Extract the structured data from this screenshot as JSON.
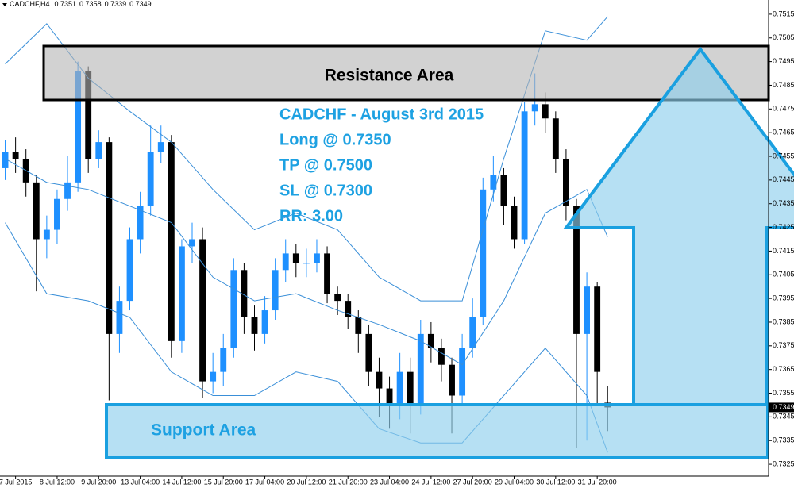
{
  "chart_data": {
    "type": "candlestick",
    "symbol": "CADCHF,H4",
    "open": [
      0.745,
      0.7457,
      0.7454,
      0.7444,
      0.742,
      0.7424,
      0.7437,
      0.7444,
      0.7491,
      0.7454,
      0.7461,
      0.738,
      0.7394,
      0.742,
      0.7434,
      0.7457,
      0.7461,
      0.7377,
      0.7417,
      0.742,
      0.736,
      0.7364,
      0.7374,
      0.7407,
      0.7387,
      0.738,
      0.739,
      0.7407,
      0.7414,
      0.741,
      0.741,
      0.7414,
      0.7397,
      0.7394,
      0.7387,
      0.738,
      0.7364,
      0.7357,
      0.735,
      0.7364,
      0.735,
      0.738,
      0.7374,
      0.7367,
      0.7354,
      0.7374,
      0.7387,
      0.7441,
      0.7447,
      0.7434,
      0.742,
      0.7474,
      0.7477,
      0.7471,
      0.7454,
      0.7434,
      0.738,
      0.74,
      0.7351
    ],
    "high": [
      0.7462,
      0.7463,
      0.7458,
      0.7447,
      0.743,
      0.7441,
      0.7455,
      0.7495,
      0.7493,
      0.7466,
      0.7463,
      0.74,
      0.7425,
      0.744,
      0.7468,
      0.7468,
      0.7464,
      0.742,
      0.7427,
      0.7425,
      0.7372,
      0.738,
      0.7412,
      0.741,
      0.7392,
      0.7396,
      0.7412,
      0.742,
      0.7418,
      0.7416,
      0.742,
      0.7417,
      0.74,
      0.7397,
      0.739,
      0.7384,
      0.737,
      0.7362,
      0.7372,
      0.737,
      0.7386,
      0.7385,
      0.7378,
      0.737,
      0.738,
      0.7395,
      0.7446,
      0.7455,
      0.745,
      0.7438,
      0.7478,
      0.749,
      0.7482,
      0.7474,
      0.7458,
      0.7437,
      0.7406,
      0.7402,
      0.7358
    ],
    "low": [
      0.7445,
      0.7448,
      0.7438,
      0.7398,
      0.7412,
      0.7418,
      0.7432,
      0.744,
      0.7448,
      0.745,
      0.7352,
      0.7372,
      0.739,
      0.7414,
      0.743,
      0.7452,
      0.737,
      0.7372,
      0.741,
      0.7353,
      0.7355,
      0.7358,
      0.737,
      0.738,
      0.7373,
      0.7376,
      0.7386,
      0.7402,
      0.7404,
      0.7404,
      0.7406,
      0.7393,
      0.7388,
      0.7382,
      0.7372,
      0.7358,
      0.7345,
      0.734,
      0.7344,
      0.7338,
      0.7346,
      0.7368,
      0.736,
      0.7338,
      0.735,
      0.737,
      0.7384,
      0.7436,
      0.7426,
      0.7416,
      0.7418,
      0.7468,
      0.7465,
      0.7448,
      0.7428,
      0.7332,
      0.7335,
      0.735,
      0.7339
    ],
    "close": [
      0.7457,
      0.7454,
      0.7444,
      0.742,
      0.7424,
      0.7437,
      0.7444,
      0.7491,
      0.7454,
      0.7461,
      0.738,
      0.7394,
      0.742,
      0.7434,
      0.7457,
      0.7461,
      0.7377,
      0.7417,
      0.742,
      0.736,
      0.7364,
      0.7374,
      0.7407,
      0.7387,
      0.738,
      0.739,
      0.7407,
      0.7414,
      0.741,
      0.741,
      0.7414,
      0.7397,
      0.7394,
      0.7387,
      0.738,
      0.7364,
      0.7357,
      0.735,
      0.7364,
      0.735,
      0.738,
      0.7374,
      0.7367,
      0.7354,
      0.7374,
      0.7387,
      0.7441,
      0.7447,
      0.7434,
      0.742,
      0.7474,
      0.7477,
      0.7471,
      0.7454,
      0.7434,
      0.738,
      0.74,
      0.7364,
      0.7349
    ],
    "up_color": "#1e90ff",
    "down_color": "#000000",
    "bands": {
      "x": [
        0,
        4,
        8,
        12,
        16,
        20,
        24,
        28,
        32,
        36,
        40,
        44,
        48,
        52,
        56,
        58
      ],
      "series": [
        {
          "color": "#3a8fd8",
          "values": [
            0.7494,
            0.7511,
            0.7488,
            0.7474,
            0.7461,
            0.7441,
            0.7424,
            0.7431,
            0.7424,
            0.7404,
            0.7394,
            0.7394,
            0.7454,
            0.7508,
            0.7504,
            0.7514
          ]
        },
        {
          "color": "#3a8fd8",
          "values": [
            0.7454,
            0.7444,
            0.7441,
            0.7434,
            0.7427,
            0.7404,
            0.7394,
            0.7397,
            0.739,
            0.7384,
            0.7377,
            0.7367,
            0.7394,
            0.7431,
            0.7441,
            0.7421
          ]
        },
        {
          "color": "#3a8fd8",
          "values": [
            0.7427,
            0.7397,
            0.7394,
            0.7387,
            0.7364,
            0.7354,
            0.7354,
            0.7364,
            0.736,
            0.734,
            0.7334,
            0.7334,
            0.7354,
            0.7374,
            0.7354,
            0.733
          ]
        }
      ]
    },
    "xlim": [
      -0.5,
      73.5
    ],
    "xticks": [
      {
        "value": 1,
        "label": "7 Jul 2015"
      },
      {
        "value": 5,
        "label": "8 Jul 12:00"
      },
      {
        "value": 9,
        "label": "9 Jul 20:00"
      },
      {
        "value": 13,
        "label": "13 Jul 04:00"
      },
      {
        "value": 17,
        "label": "14 Jul 12:00"
      },
      {
        "value": 21,
        "label": "15 Jul 20:00"
      },
      {
        "value": 25,
        "label": "17 Jul 04:00"
      },
      {
        "value": 29,
        "label": "20 Jul 12:00"
      },
      {
        "value": 33,
        "label": "21 Jul 20:00"
      },
      {
        "value": 37,
        "label": "23 Jul 04:00"
      },
      {
        "value": 41,
        "label": "24 Jul 12:00"
      },
      {
        "value": 45,
        "label": "27 Jul 20:00"
      },
      {
        "value": 49,
        "label": "29 Jul 04:00"
      },
      {
        "value": 53,
        "label": "30 Jul 12:00"
      },
      {
        "value": 57,
        "label": "31 Jul 20:00"
      }
    ],
    "ylim": [
      0.732,
      0.7521
    ],
    "yticks": [
      0.7325,
      0.7335,
      0.7345,
      0.7355,
      0.7365,
      0.7375,
      0.7385,
      0.7395,
      0.7405,
      0.7415,
      0.7425,
      0.7435,
      0.7445,
      0.7455,
      0.7465,
      0.7475,
      0.7485,
      0.7495,
      0.7505,
      0.7515
    ],
    "resistance_label": "Resistance Area",
    "support_label": "Support Area",
    "trade_notes": [
      "CADCHF - August 3rd 2015",
      "Long @ 0.7350",
      "TP @ 0.7500",
      "SL @ 0.7300",
      "RR: 3.00"
    ]
  }
}
